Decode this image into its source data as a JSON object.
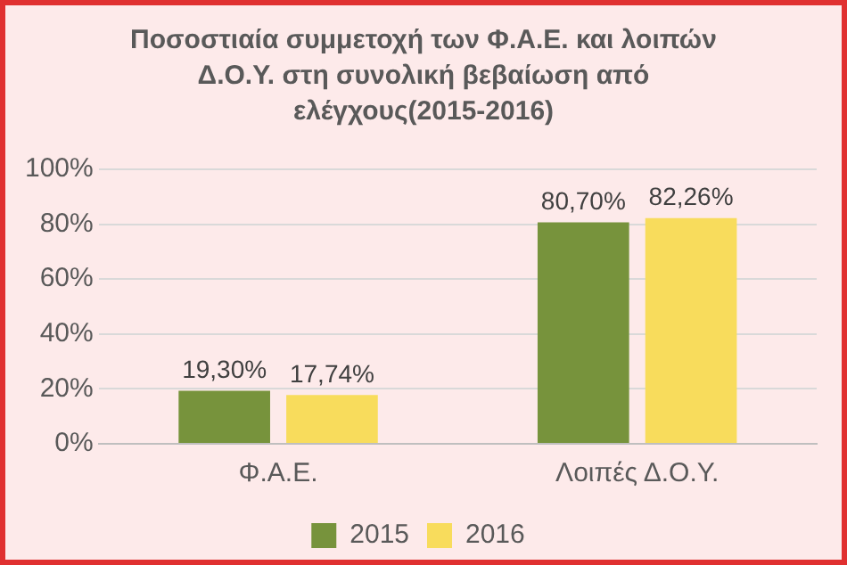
{
  "chart_data": {
    "type": "bar",
    "title": "Ποσοστιαία συμμετοχή των Φ.Α.Ε. και λοιπών Δ.Ο.Υ. στη συνολική βεβαίωση από ελέγχους(2015-2016)",
    "categories": [
      "Φ.Α.Ε.",
      "Λοιπές Δ.Ο.Υ."
    ],
    "series": [
      {
        "name": "2015",
        "color": "#77933c",
        "values": [
          19.3,
          80.7
        ],
        "value_labels": [
          "19,30%",
          "80,70%"
        ]
      },
      {
        "name": "2016",
        "color": "#f8dc5c",
        "values": [
          17.74,
          82.26
        ],
        "value_labels": [
          "17,74%",
          "82,26%"
        ]
      }
    ],
    "ylim": [
      0,
      100
    ],
    "yticks": [
      {
        "value": 0,
        "label": "0%"
      },
      {
        "value": 20,
        "label": "20%"
      },
      {
        "value": 40,
        "label": "40%"
      },
      {
        "value": 60,
        "label": "60%"
      },
      {
        "value": 80,
        "label": "80%"
      },
      {
        "value": 100,
        "label": "100%"
      }
    ],
    "grid": "y",
    "legend": "bottom"
  }
}
